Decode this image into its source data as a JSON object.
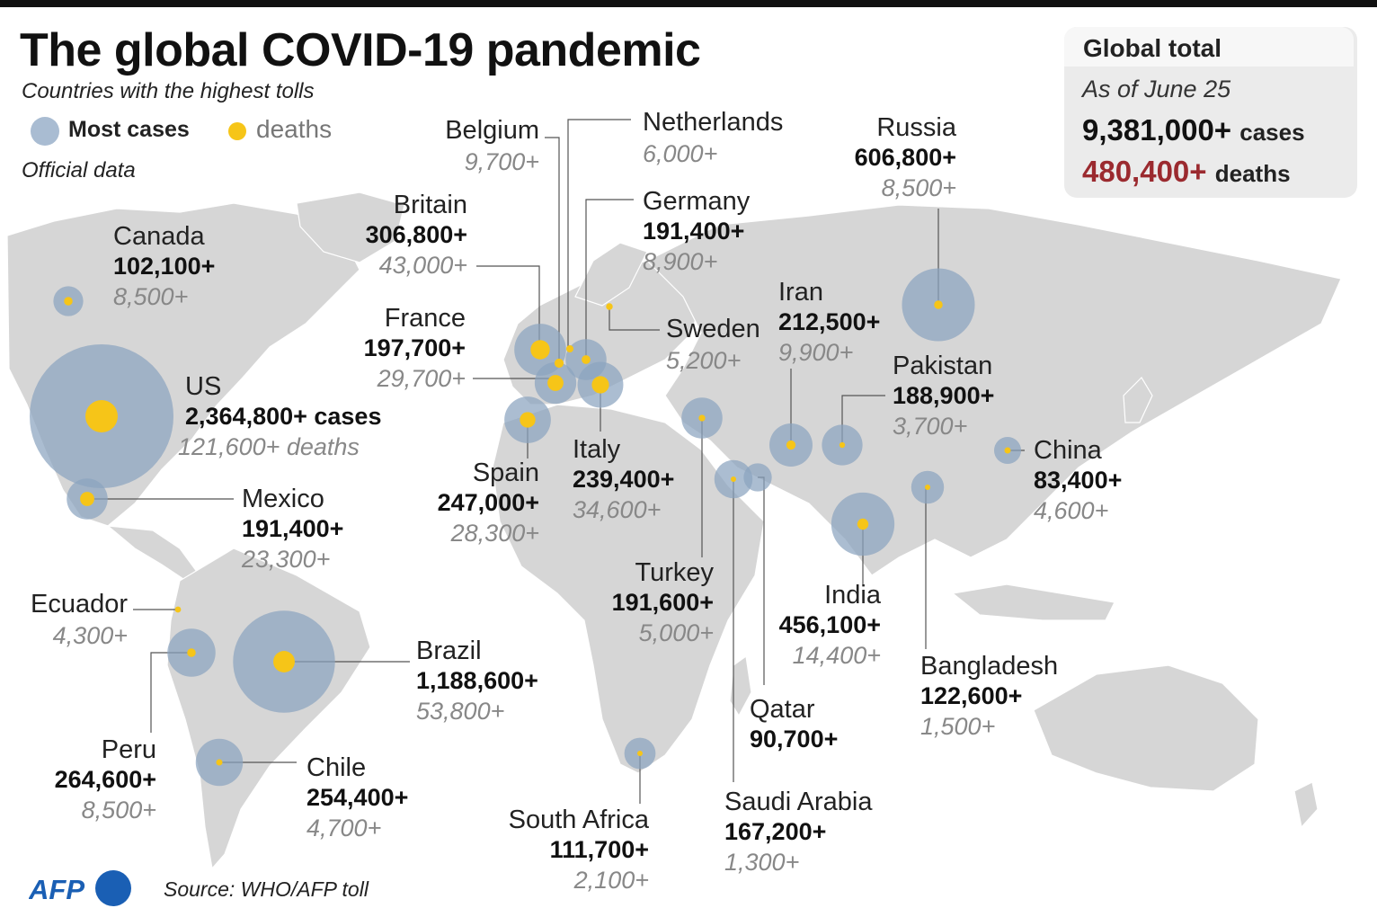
{
  "header": {
    "title": "The global COVID-19 pandemic",
    "subtitle": "Countries with the highest tolls",
    "legend_cases": "Most cases",
    "legend_deaths": "deaths",
    "note": "Official data"
  },
  "totals": {
    "title": "Global total",
    "date": "As of June 25",
    "cases_value": "9,381,000+",
    "cases_unit": "cases",
    "deaths_value": "480,400+",
    "deaths_unit": "deaths"
  },
  "colors": {
    "case_bubble": "#8aa3bf",
    "death_dot": "#f6c518",
    "land": "#d6d6d6",
    "deaths_total": "#9b2a2f"
  },
  "countries": [
    {
      "name": "US",
      "cases": "2,364,800+ cases",
      "deaths": "121,600+ deaths",
      "cases_n": 2364800,
      "deaths_n": 121600
    },
    {
      "name": "Brazil",
      "cases": "1,188,600+",
      "deaths": "53,800+",
      "cases_n": 1188600,
      "deaths_n": 53800
    },
    {
      "name": "Russia",
      "cases": "606,800+",
      "deaths": "8,500+",
      "cases_n": 606800,
      "deaths_n": 8500
    },
    {
      "name": "India",
      "cases": "456,100+",
      "deaths": "14,400+",
      "cases_n": 456100,
      "deaths_n": 14400
    },
    {
      "name": "Britain",
      "cases": "306,800+",
      "deaths": "43,000+",
      "cases_n": 306800,
      "deaths_n": 43000
    },
    {
      "name": "Peru",
      "cases": "264,600+",
      "deaths": "8,500+",
      "cases_n": 264600,
      "deaths_n": 8500
    },
    {
      "name": "Chile",
      "cases": "254,400+",
      "deaths": "4,700+",
      "cases_n": 254400,
      "deaths_n": 4700
    },
    {
      "name": "Spain",
      "cases": "247,000+",
      "deaths": "28,300+",
      "cases_n": 247000,
      "deaths_n": 28300
    },
    {
      "name": "Italy",
      "cases": "239,400+",
      "deaths": "34,600+",
      "cases_n": 239400,
      "deaths_n": 34600
    },
    {
      "name": "Iran",
      "cases": "212,500+",
      "deaths": "9,900+",
      "cases_n": 212500,
      "deaths_n": 9900
    },
    {
      "name": "France",
      "cases": "197,700+",
      "deaths": "29,700+",
      "cases_n": 197700,
      "deaths_n": 29700
    },
    {
      "name": "Turkey",
      "cases": "191,600+",
      "deaths": "5,000+",
      "cases_n": 191600,
      "deaths_n": 5000
    },
    {
      "name": "Germany",
      "cases": "191,400+",
      "deaths": "8,900+",
      "cases_n": 191400,
      "deaths_n": 8900
    },
    {
      "name": "Mexico",
      "cases": "191,400+",
      "deaths": "23,300+",
      "cases_n": 191400,
      "deaths_n": 23300
    },
    {
      "name": "Pakistan",
      "cases": "188,900+",
      "deaths": "3,700+",
      "cases_n": 188900,
      "deaths_n": 3700
    },
    {
      "name": "Saudi Arabia",
      "cases": "167,200+",
      "deaths": "1,300+",
      "cases_n": 167200,
      "deaths_n": 1300
    },
    {
      "name": "Bangladesh",
      "cases": "122,600+",
      "deaths": "1,500+",
      "cases_n": 122600,
      "deaths_n": 1500
    },
    {
      "name": "South Africa",
      "cases": "111,700+",
      "deaths": "2,100+",
      "cases_n": 111700,
      "deaths_n": 2100
    },
    {
      "name": "Canada",
      "cases": "102,100+",
      "deaths": "8,500+",
      "cases_n": 102100,
      "deaths_n": 8500
    },
    {
      "name": "Qatar",
      "cases": "90,700+",
      "cases_n": 90700
    },
    {
      "name": "China",
      "cases": "83,400+",
      "deaths": "4,600+",
      "cases_n": 83400,
      "deaths_n": 4600
    },
    {
      "name": "Belgium",
      "deaths": "9,700+",
      "deaths_n": 9700
    },
    {
      "name": "Netherlands",
      "deaths": "6,000+",
      "deaths_n": 6000
    },
    {
      "name": "Sweden",
      "deaths": "5,200+",
      "deaths_n": 5200
    },
    {
      "name": "Ecuador",
      "deaths": "4,300+",
      "deaths_n": 4300
    }
  ],
  "footer": {
    "logo_text": "AFP",
    "source": "Source: WHO/AFP toll"
  }
}
